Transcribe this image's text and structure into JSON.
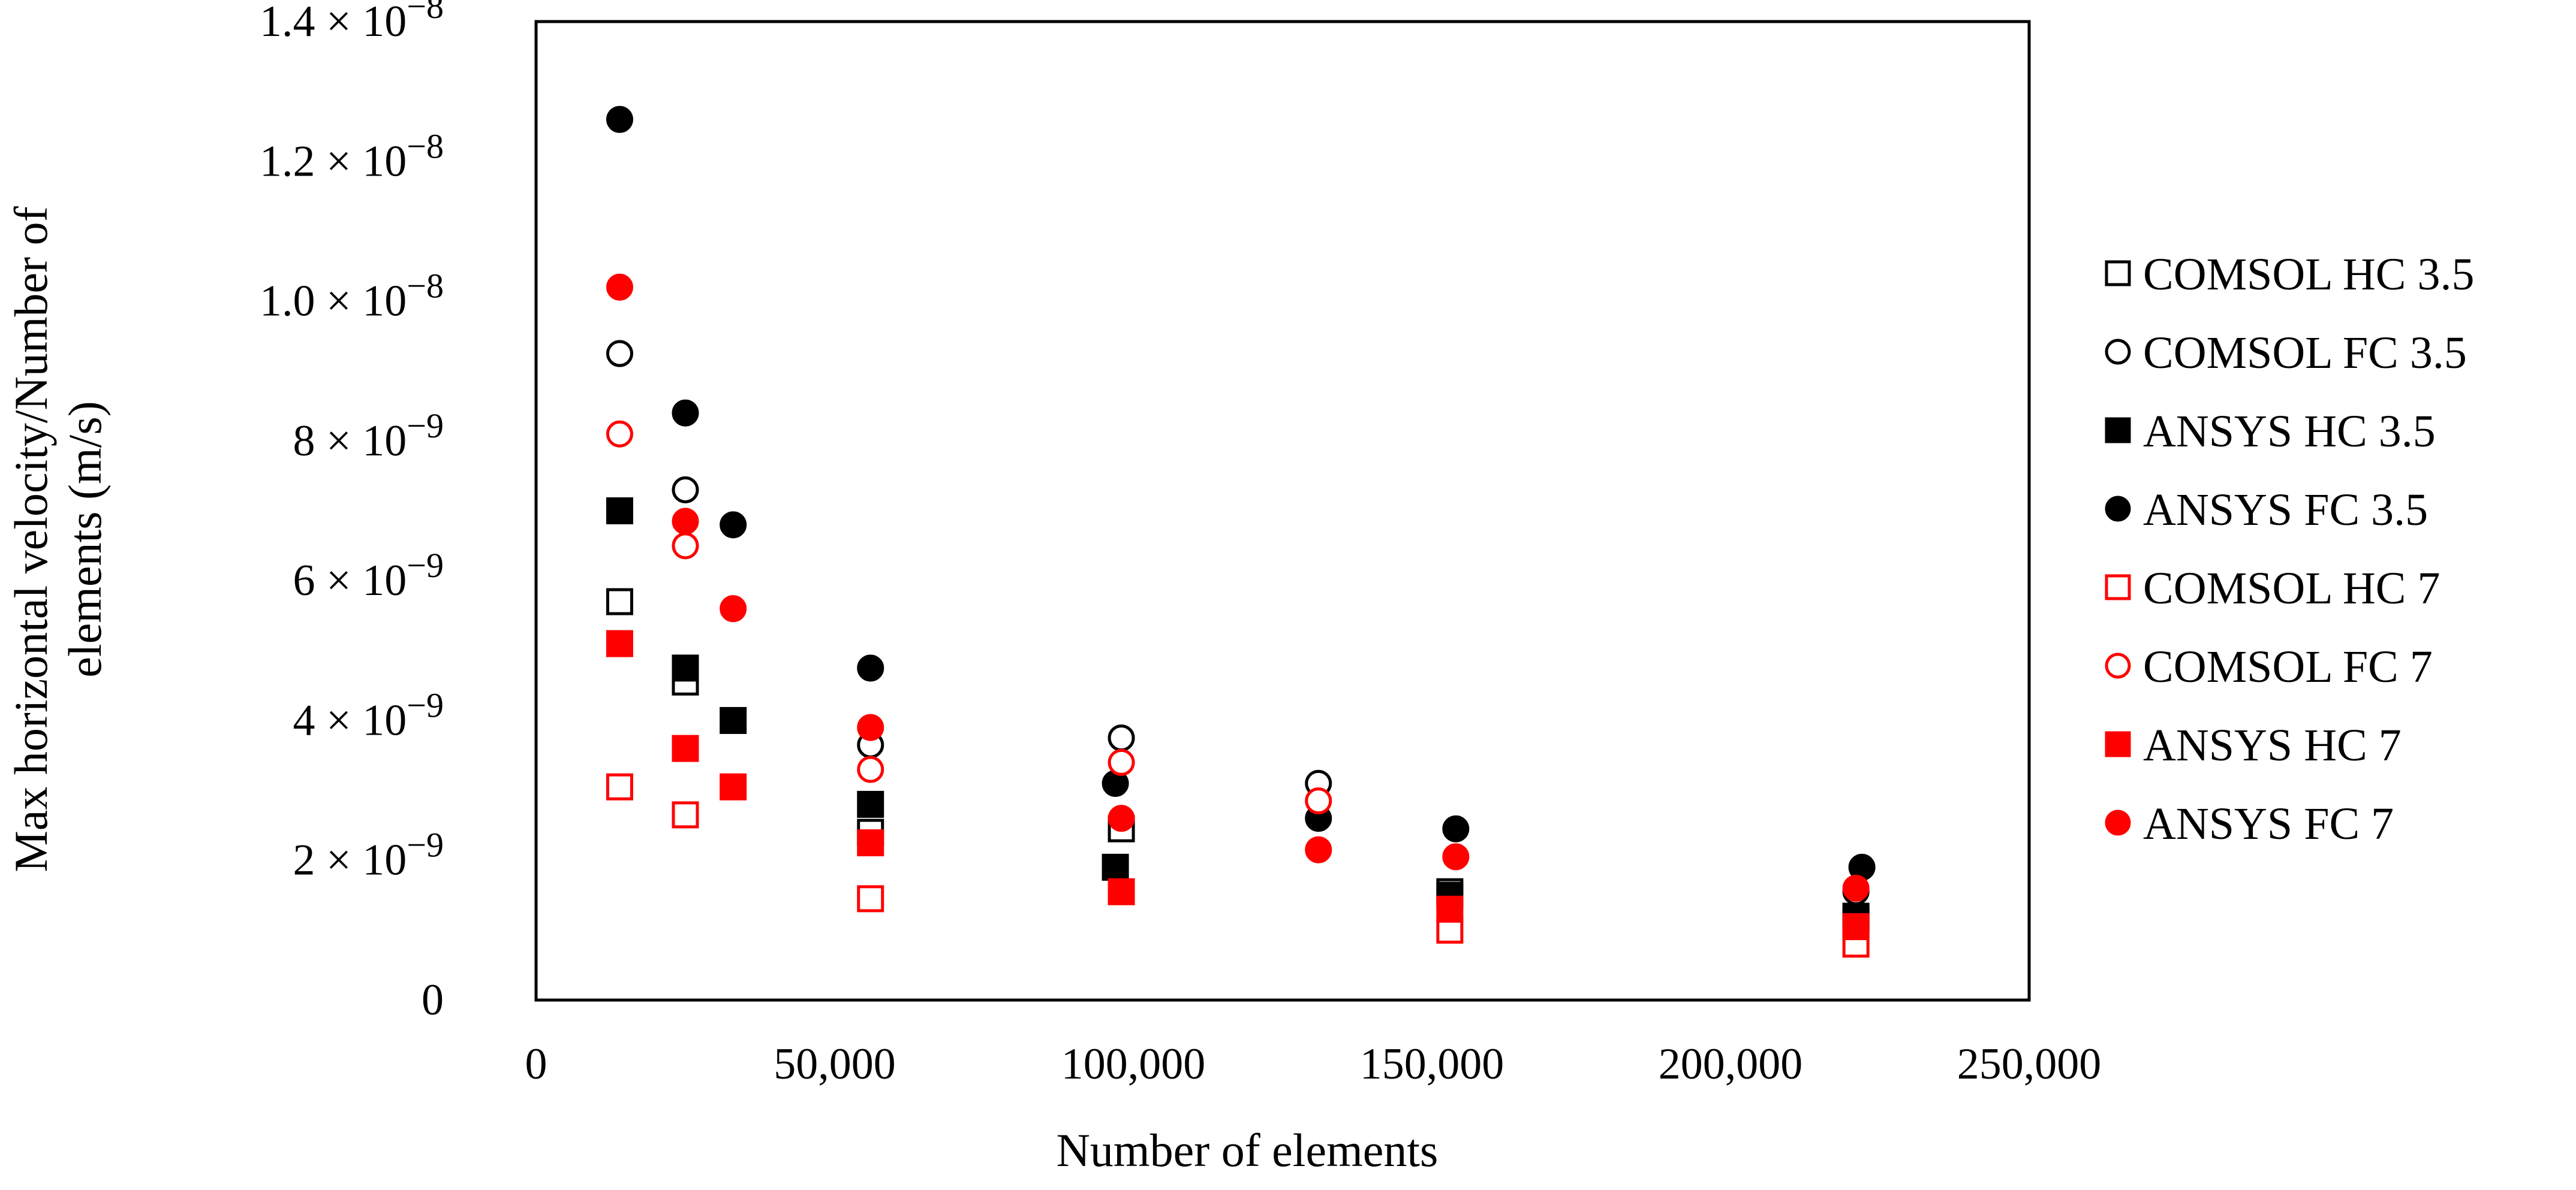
{
  "chart_data": {
    "type": "scatter",
    "title": "",
    "xlabel": "Number of elements",
    "ylabel": "Max horizontal velocity/Number of elements (m/s)",
    "ylabel_lines": [
      "Max horizontal velocity/Number of",
      "elements (m/s)"
    ],
    "xlim": [
      0,
      250000
    ],
    "ylim": [
      0,
      1.4e-08
    ],
    "x_ticks": [
      {
        "value": 0,
        "label": "0"
      },
      {
        "value": 50000,
        "label": "50,000"
      },
      {
        "value": 100000,
        "label": "100,000"
      },
      {
        "value": 150000,
        "label": "150,000"
      },
      {
        "value": 200000,
        "label": "200,000"
      },
      {
        "value": 250000,
        "label": "250,000"
      }
    ],
    "y_ticks": [
      {
        "value": 0,
        "label": "0",
        "mantissa": "",
        "exponent": ""
      },
      {
        "value": 2e-09,
        "label": "2 × 10^-9",
        "mantissa": "2 × 10",
        "exponent": "−9"
      },
      {
        "value": 4e-09,
        "label": "4 × 10^-9",
        "mantissa": "4 × 10",
        "exponent": "−9"
      },
      {
        "value": 6e-09,
        "label": "6 × 10^-9",
        "mantissa": "6 × 10",
        "exponent": "−9"
      },
      {
        "value": 8e-09,
        "label": "8 × 10^-9",
        "mantissa": "8 × 10",
        "exponent": "−9"
      },
      {
        "value": 1e-08,
        "label": "1.0 × 10^-8",
        "mantissa": "1.0 × 10",
        "exponent": "−8"
      },
      {
        "value": 1.2e-08,
        "label": "1.2 × 10^-8",
        "mantissa": "1.2 × 10",
        "exponent": "−8"
      },
      {
        "value": 1.4e-08,
        "label": "1.4 × 10^-8",
        "mantissa": "1.4 × 10",
        "exponent": "−8"
      }
    ],
    "grid": false,
    "legend_position": "right",
    "series": [
      {
        "name": "COMSOL HC 3.5",
        "marker": "square",
        "filled": false,
        "color": "#000000",
        "x": [
          14000,
          25000,
          56000,
          98000,
          153000,
          221000
        ],
        "y": [
          5.7e-09,
          4.55e-09,
          2.4e-09,
          2.45e-09,
          1.55e-09,
          1.15e-09
        ]
      },
      {
        "name": "COMSOL FC 3.5",
        "marker": "circle",
        "filled": false,
        "color": "#000000",
        "x": [
          14000,
          25000,
          56000,
          98000,
          131000,
          221000
        ],
        "y": [
          9.25e-09,
          7.3e-09,
          3.65e-09,
          3.75e-09,
          3.1e-09,
          1.55e-09
        ]
      },
      {
        "name": "ANSYS HC 3.5",
        "marker": "square",
        "filled": true,
        "color": "#000000",
        "x": [
          14000,
          25000,
          33000,
          56000,
          97000,
          153000,
          221000
        ],
        "y": [
          7e-09,
          4.75e-09,
          4e-09,
          2.8e-09,
          1.9e-09,
          1.5e-09,
          1.2e-09
        ]
      },
      {
        "name": "ANSYS FC 3.5",
        "marker": "circle",
        "filled": true,
        "color": "#000000",
        "x": [
          14000,
          25000,
          33000,
          56000,
          97000,
          131000,
          154000,
          222000
        ],
        "y": [
          1.26e-08,
          8.4e-09,
          6.8e-09,
          4.75e-09,
          3.1e-09,
          2.6e-09,
          2.45e-09,
          1.9e-09
        ]
      },
      {
        "name": "COMSOL HC 7",
        "marker": "square",
        "filled": false,
        "color": "#ff0000",
        "x": [
          14000,
          25000,
          56000,
          153000,
          221000
        ],
        "y": [
          3.05e-09,
          2.65e-09,
          1.45e-09,
          1e-09,
          8e-10
        ]
      },
      {
        "name": "COMSOL FC 7",
        "marker": "circle",
        "filled": false,
        "color": "#ff0000",
        "x": [
          14000,
          25000,
          56000,
          98000,
          131000
        ],
        "y": [
          8.1e-09,
          6.5e-09,
          3.3e-09,
          3.4e-09,
          2.85e-09
        ]
      },
      {
        "name": "ANSYS HC 7",
        "marker": "square",
        "filled": true,
        "color": "#ff0000",
        "x": [
          14000,
          25000,
          33000,
          56000,
          98000,
          153000,
          221000
        ],
        "y": [
          5.1e-09,
          3.6e-09,
          3.05e-09,
          2.25e-09,
          1.55e-09,
          1.3e-09,
          1.05e-09
        ]
      },
      {
        "name": "ANSYS FC 7",
        "marker": "circle",
        "filled": true,
        "color": "#ff0000",
        "x": [
          14000,
          25000,
          33000,
          56000,
          98000,
          131000,
          154000,
          221000
        ],
        "y": [
          1.02e-08,
          6.85e-09,
          5.6e-09,
          3.9e-09,
          2.6e-09,
          2.15e-09,
          2.05e-09,
          1.6e-09
        ]
      }
    ]
  }
}
